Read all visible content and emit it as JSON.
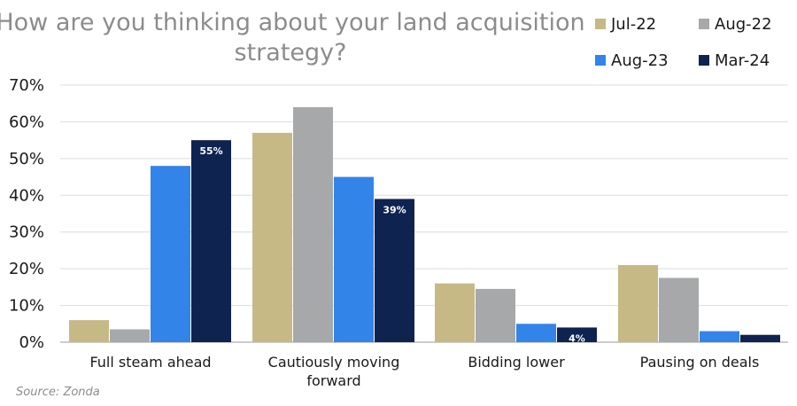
{
  "chart_data": {
    "type": "bar",
    "title_lines": [
      "How are you thinking about your land acquisition",
      "strategy?"
    ],
    "categories": [
      [
        "Full steam ahead"
      ],
      [
        "Cautiously moving",
        "forward"
      ],
      [
        "Bidding lower"
      ],
      [
        "Pausing on deals"
      ]
    ],
    "series": [
      {
        "name": "Jul-22",
        "color": "#c6b985",
        "values": [
          6,
          57,
          16,
          21
        ]
      },
      {
        "name": "Aug-22",
        "color": "#a6a8aa",
        "values": [
          3.5,
          64,
          14.5,
          17.5
        ]
      },
      {
        "name": "Aug-23",
        "color": "#3384e8",
        "values": [
          48,
          45,
          5,
          3
        ]
      },
      {
        "name": "Mar-24",
        "color": "#0f2350",
        "values": [
          55,
          39,
          4,
          2
        ]
      }
    ],
    "data_labels": [
      {
        "series": 3,
        "category": 0,
        "text": "55%"
      },
      {
        "series": 3,
        "category": 1,
        "text": "39%"
      },
      {
        "series": 3,
        "category": 2,
        "text": "4%"
      }
    ],
    "y_ticks": [
      "0%",
      "10%",
      "20%",
      "30%",
      "40%",
      "50%",
      "60%",
      "70%"
    ],
    "ylim": [
      0,
      70
    ],
    "grid": true,
    "legend": "top-right",
    "xlabel": "",
    "ylabel": ""
  },
  "source": "Source: Zonda"
}
